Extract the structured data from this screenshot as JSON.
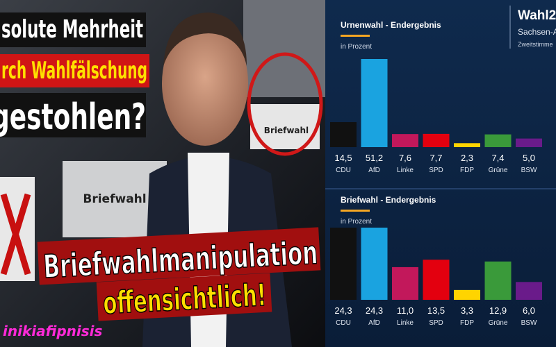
{
  "headline": {
    "lines": [
      "solute Mehrheit",
      "rch Wahlfälschung",
      "gestohlen?"
    ]
  },
  "subheadline": {
    "lines": [
      "Briefwahlmanipulation",
      "offensichtlich!"
    ]
  },
  "photo_labels": [
    "Briefwahl",
    "Briefwahl"
  ],
  "watermark": "inikiafipnisis",
  "brand": {
    "title": "Wahl2",
    "region": "Sachsen-A",
    "subtitle": "Zweitstimme"
  },
  "chart_data": [
    {
      "type": "bar",
      "title": "Urnenwahl - Endergebnis",
      "subtitle": "in Prozent",
      "categories": [
        "CDU",
        "AfD",
        "Linke",
        "SPD",
        "FDP",
        "Grüne",
        "BSW"
      ],
      "values": [
        14.5,
        51.2,
        7.6,
        7.7,
        2.3,
        7.4,
        5.0
      ],
      "value_labels": [
        "14,5",
        "51,2",
        "7,6",
        "7,7",
        "2,3",
        "7,4",
        "5,0"
      ],
      "colors": [
        "#111111",
        "#1aa3e0",
        "#c2185b",
        "#e3000f",
        "#ffd400",
        "#3a9a3a",
        "#6a1b8a"
      ]
    },
    {
      "type": "bar",
      "title": "Briefwahl - Endergebnis",
      "subtitle": "in Prozent",
      "categories": [
        "CDU",
        "AfD",
        "Linke",
        "SPD",
        "FDP",
        "Grüne",
        "BSW"
      ],
      "values": [
        24.3,
        24.3,
        11.0,
        13.5,
        3.3,
        12.9,
        6.0
      ],
      "value_labels": [
        "24,3",
        "24,3",
        "11,0",
        "13,5",
        "3,3",
        "12,9",
        "6,0"
      ],
      "colors": [
        "#111111",
        "#1aa3e0",
        "#c2185b",
        "#e3000f",
        "#ffd400",
        "#3a9a3a",
        "#6a1b8a"
      ]
    }
  ]
}
